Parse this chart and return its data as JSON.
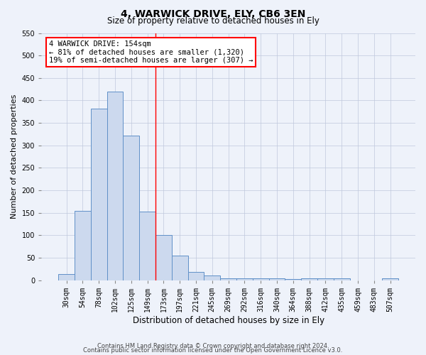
{
  "title1": "4, WARWICK DRIVE, ELY, CB6 3EN",
  "title2": "Size of property relative to detached houses in Ely",
  "xlabel": "Distribution of detached houses by size in Ely",
  "ylabel": "Number of detached properties",
  "bar_labels": [
    "30sqm",
    "54sqm",
    "78sqm",
    "102sqm",
    "125sqm",
    "149sqm",
    "173sqm",
    "197sqm",
    "221sqm",
    "245sqm",
    "269sqm",
    "292sqm",
    "316sqm",
    "340sqm",
    "364sqm",
    "388sqm",
    "412sqm",
    "435sqm",
    "459sqm",
    "483sqm",
    "507sqm"
  ],
  "bar_values": [
    13,
    155,
    382,
    420,
    322,
    152,
    100,
    55,
    18,
    10,
    5,
    5,
    4,
    4,
    3,
    4,
    5,
    4,
    0,
    0,
    4
  ],
  "bar_color": "#ccd9ee",
  "bar_edge_color": "#6090c8",
  "ylim": [
    0,
    550
  ],
  "yticks": [
    0,
    50,
    100,
    150,
    200,
    250,
    300,
    350,
    400,
    450,
    500,
    550
  ],
  "red_line_x": 5.5,
  "annotation_line1": "4 WARWICK DRIVE: 154sqm",
  "annotation_line2": "← 81% of detached houses are smaller (1,320)",
  "annotation_line3": "19% of semi-detached houses are larger (307) →",
  "footer1": "Contains HM Land Registry data © Crown copyright and database right 2024.",
  "footer2": "Contains public sector information licensed under the Open Government Licence v3.0.",
  "background_color": "#eef2fa",
  "grid_color": "#c0c8dc",
  "title1_fontsize": 10,
  "title2_fontsize": 8.5,
  "ylabel_fontsize": 8,
  "xlabel_fontsize": 8.5,
  "tick_fontsize": 7,
  "footer_fontsize": 6,
  "annot_fontsize": 7.5
}
